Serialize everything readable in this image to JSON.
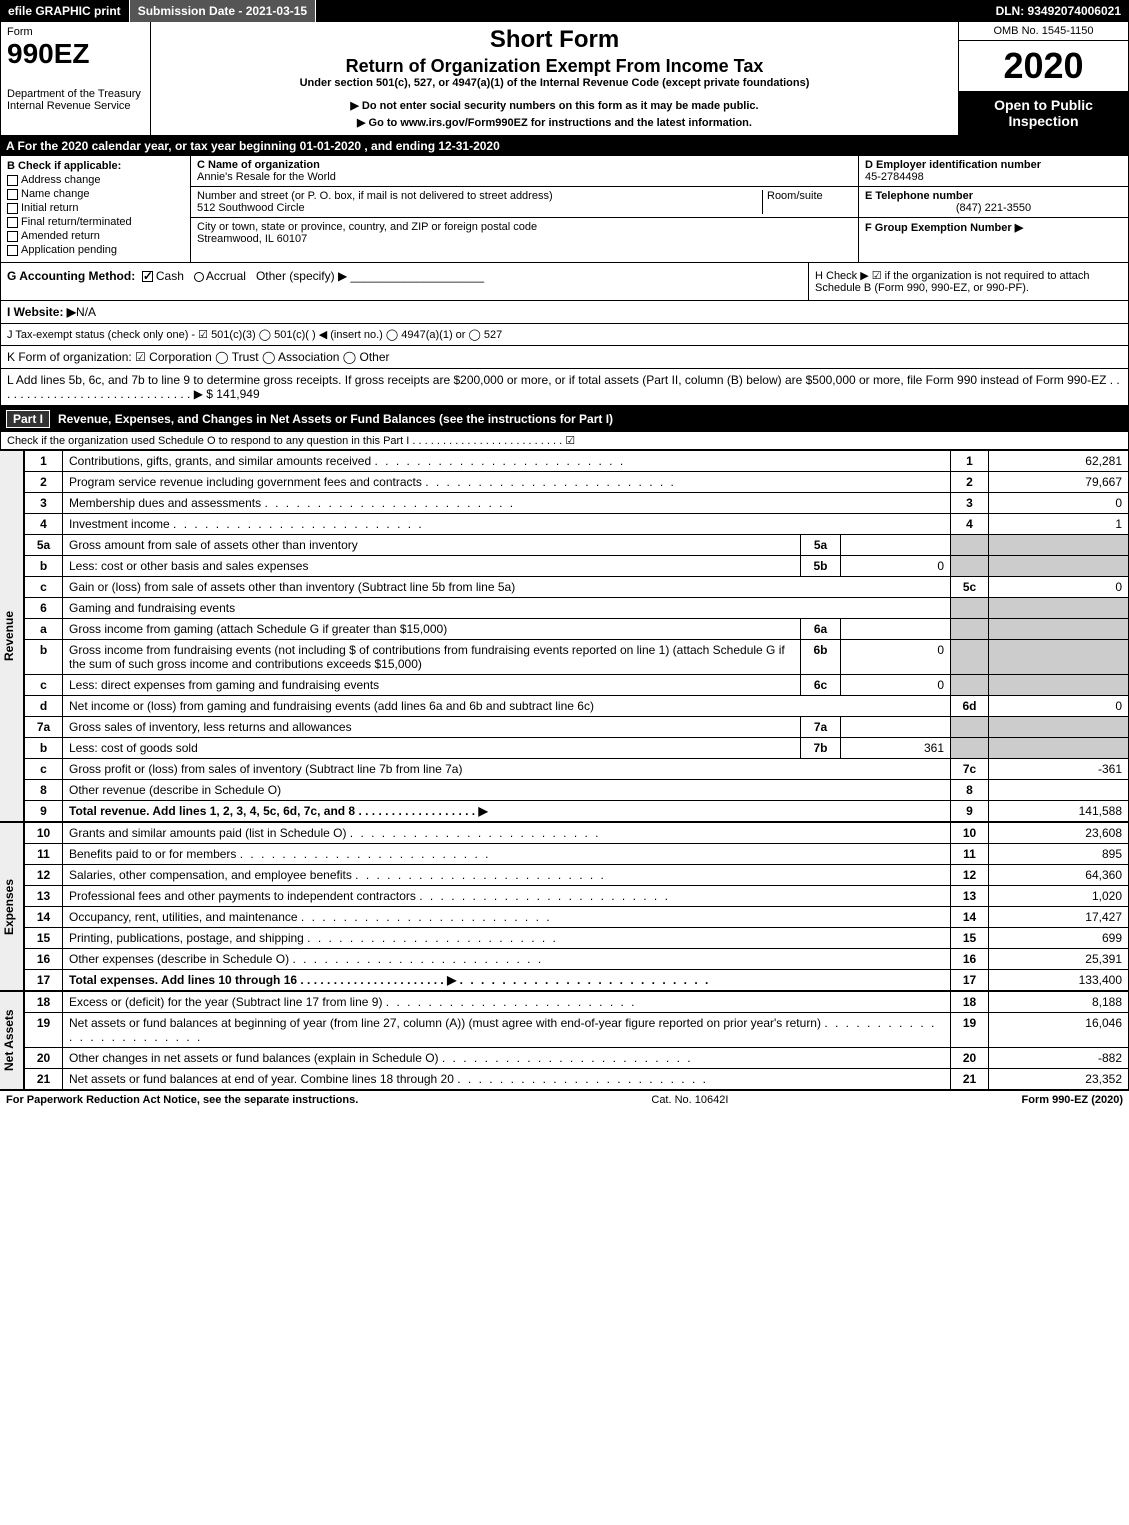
{
  "topbar": {
    "efile": "efile GRAPHIC print",
    "submission_label": "Submission Date - 2021-03-15",
    "dln": "DLN: 93492074006021"
  },
  "header": {
    "form_word": "Form",
    "form_number": "990EZ",
    "dept": "Department of the Treasury\nInternal Revenue Service",
    "short_form": "Short Form",
    "title2": "Return of Organization Exempt From Income Tax",
    "subtitle": "Under section 501(c), 527, or 4947(a)(1) of the Internal Revenue Code (except private foundations)",
    "note1": "▶ Do not enter social security numbers on this form as it may be made public.",
    "note2": "▶ Go to www.irs.gov/Form990EZ for instructions and the latest information.",
    "omb": "OMB No. 1545-1150",
    "year": "2020",
    "open": "Open to Public Inspection"
  },
  "line_a": "A For the 2020 calendar year, or tax year beginning 01-01-2020 , and ending 12-31-2020",
  "box_b": {
    "title": "B Check if applicable:",
    "opts": [
      "Address change",
      "Name change",
      "Initial return",
      "Final return/terminated",
      "Amended return",
      "Application pending"
    ]
  },
  "box_c": {
    "name_label": "C Name of organization",
    "name": "Annie's Resale for the World",
    "street_label": "Number and street (or P. O. box, if mail is not delivered to street address)",
    "room_label": "Room/suite",
    "street": "512 Southwood Circle",
    "city_label": "City or town, state or province, country, and ZIP or foreign postal code",
    "city": "Streamwood, IL  60107"
  },
  "box_d": {
    "ein_label": "D Employer identification number",
    "ein": "45-2784498",
    "phone_label": "E Telephone number",
    "phone": "(847) 221-3550",
    "group_label": "F Group Exemption Number  ▶"
  },
  "row_g": {
    "acct_label": "G Accounting Method:",
    "cash": "Cash",
    "accrual": "Accrual",
    "other": "Other (specify) ▶",
    "h_text": "H  Check ▶ ☑ if the organization is not required to attach Schedule B (Form 990, 990-EZ, or 990-PF)."
  },
  "row_i": {
    "label": "I Website: ▶",
    "value": "N/A"
  },
  "row_j": "J Tax-exempt status (check only one) - ☑ 501(c)(3)  ◯ 501(c)(  ) ◀ (insert no.)  ◯ 4947(a)(1) or  ◯ 527",
  "row_k": "K Form of organization:  ☑ Corporation  ◯ Trust  ◯ Association  ◯ Other",
  "row_l": "L Add lines 5b, 6c, and 7b to line 9 to determine gross receipts. If gross receipts are $200,000 or more, or if total assets (Part II, column (B) below) are $500,000 or more, file Form 990 instead of Form 990-EZ  . . . . . . . . . . . . . . . . . . . . . . . . . . . . . .  ▶ $ 141,949",
  "part1": {
    "tag": "Part I",
    "title": "Revenue, Expenses, and Changes in Net Assets or Fund Balances (see the instructions for Part I)",
    "check_note": "Check if the organization used Schedule O to respond to any question in this Part I . . . . . . . . . . . . . . . . . . . . . . . . . ☑"
  },
  "side_labels": {
    "revenue": "Revenue",
    "expenses": "Expenses",
    "netassets": "Net Assets"
  },
  "revenue": [
    {
      "n": "1",
      "desc": "Contributions, gifts, grants, and similar amounts received",
      "ln": "1",
      "amt": "62,281"
    },
    {
      "n": "2",
      "desc": "Program service revenue including government fees and contracts",
      "ln": "2",
      "amt": "79,667"
    },
    {
      "n": "3",
      "desc": "Membership dues and assessments",
      "ln": "3",
      "amt": "0"
    },
    {
      "n": "4",
      "desc": "Investment income",
      "ln": "4",
      "amt": "1"
    }
  ],
  "line5a": {
    "n": "5a",
    "desc": "Gross amount from sale of assets other than inventory",
    "sub": "5a",
    "subval": ""
  },
  "line5b": {
    "n": "b",
    "desc": "Less: cost or other basis and sales expenses",
    "sub": "5b",
    "subval": "0"
  },
  "line5c": {
    "n": "c",
    "desc": "Gain or (loss) from sale of assets other than inventory (Subtract line 5b from line 5a)",
    "ln": "5c",
    "amt": "0"
  },
  "line6": {
    "n": "6",
    "desc": "Gaming and fundraising events"
  },
  "line6a": {
    "n": "a",
    "desc": "Gross income from gaming (attach Schedule G if greater than $15,000)",
    "sub": "6a",
    "subval": ""
  },
  "line6b": {
    "n": "b",
    "desc": "Gross income from fundraising events (not including $                     of contributions from fundraising events reported on line 1) (attach Schedule G if the sum of such gross income and contributions exceeds $15,000)",
    "sub": "6b",
    "subval": "0"
  },
  "line6c": {
    "n": "c",
    "desc": "Less: direct expenses from gaming and fundraising events",
    "sub": "6c",
    "subval": "0"
  },
  "line6d": {
    "n": "d",
    "desc": "Net income or (loss) from gaming and fundraising events (add lines 6a and 6b and subtract line 6c)",
    "ln": "6d",
    "amt": "0"
  },
  "line7a": {
    "n": "7a",
    "desc": "Gross sales of inventory, less returns and allowances",
    "sub": "7a",
    "subval": ""
  },
  "line7b": {
    "n": "b",
    "desc": "Less: cost of goods sold",
    "sub": "7b",
    "subval": "361"
  },
  "line7c": {
    "n": "c",
    "desc": "Gross profit or (loss) from sales of inventory (Subtract line 7b from line 7a)",
    "ln": "7c",
    "amt": "-361"
  },
  "line8": {
    "n": "8",
    "desc": "Other revenue (describe in Schedule O)",
    "ln": "8",
    "amt": ""
  },
  "line9": {
    "n": "9",
    "desc": "Total revenue. Add lines 1, 2, 3, 4, 5c, 6d, 7c, and 8  . . . . . . . . . . . . . . . . . .  ▶",
    "ln": "9",
    "amt": "141,588",
    "bold": true
  },
  "expenses": [
    {
      "n": "10",
      "desc": "Grants and similar amounts paid (list in Schedule O)",
      "ln": "10",
      "amt": "23,608"
    },
    {
      "n": "11",
      "desc": "Benefits paid to or for members",
      "ln": "11",
      "amt": "895"
    },
    {
      "n": "12",
      "desc": "Salaries, other compensation, and employee benefits",
      "ln": "12",
      "amt": "64,360"
    },
    {
      "n": "13",
      "desc": "Professional fees and other payments to independent contractors",
      "ln": "13",
      "amt": "1,020"
    },
    {
      "n": "14",
      "desc": "Occupancy, rent, utilities, and maintenance",
      "ln": "14",
      "amt": "17,427"
    },
    {
      "n": "15",
      "desc": "Printing, publications, postage, and shipping",
      "ln": "15",
      "amt": "699"
    },
    {
      "n": "16",
      "desc": "Other expenses (describe in Schedule O)",
      "ln": "16",
      "amt": "25,391"
    },
    {
      "n": "17",
      "desc": "Total expenses. Add lines 10 through 16  . . . . . . . . . . . . . . . . . . . . . .  ▶",
      "ln": "17",
      "amt": "133,400",
      "bold": true
    }
  ],
  "netassets": [
    {
      "n": "18",
      "desc": "Excess or (deficit) for the year (Subtract line 17 from line 9)",
      "ln": "18",
      "amt": "8,188"
    },
    {
      "n": "19",
      "desc": "Net assets or fund balances at beginning of year (from line 27, column (A)) (must agree with end-of-year figure reported on prior year's return)",
      "ln": "19",
      "amt": "16,046"
    },
    {
      "n": "20",
      "desc": "Other changes in net assets or fund balances (explain in Schedule O)",
      "ln": "20",
      "amt": "-882"
    },
    {
      "n": "21",
      "desc": "Net assets or fund balances at end of year. Combine lines 18 through 20",
      "ln": "21",
      "amt": "23,352"
    }
  ],
  "footer": {
    "left": "For Paperwork Reduction Act Notice, see the separate instructions.",
    "mid": "Cat. No. 10642I",
    "right": "Form 990-EZ (2020)"
  }
}
